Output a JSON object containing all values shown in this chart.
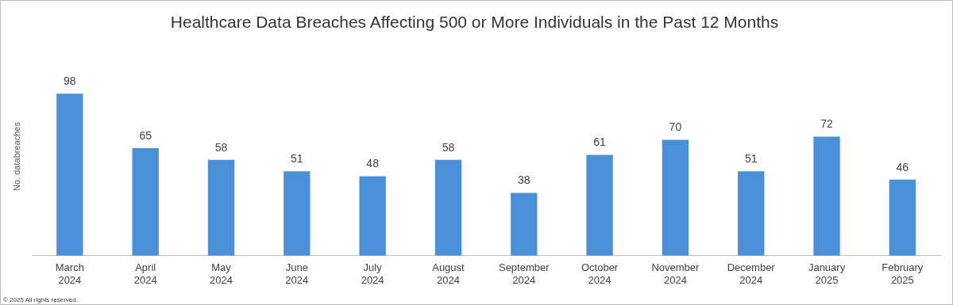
{
  "chart_data": {
    "type": "bar",
    "title": "Healthcare Data Breaches Affecting 500 or More Individuals in the Past 12 Months",
    "ylabel": "No. databreaches",
    "categories": [
      "March 2024",
      "April 2024",
      "May 2024",
      "June 2024",
      "July 2024",
      "August 2024",
      "September 2024",
      "October 2024",
      "November 2024",
      "December 2024",
      "January 2025",
      "February 2025"
    ],
    "values": [
      98,
      65,
      58,
      51,
      48,
      58,
      38,
      61,
      70,
      51,
      72,
      46
    ],
    "color": "#4a90d9",
    "data_labels": true,
    "grid": false,
    "legend": false,
    "annotations": [
      "© 2025 All rights reserved."
    ]
  }
}
